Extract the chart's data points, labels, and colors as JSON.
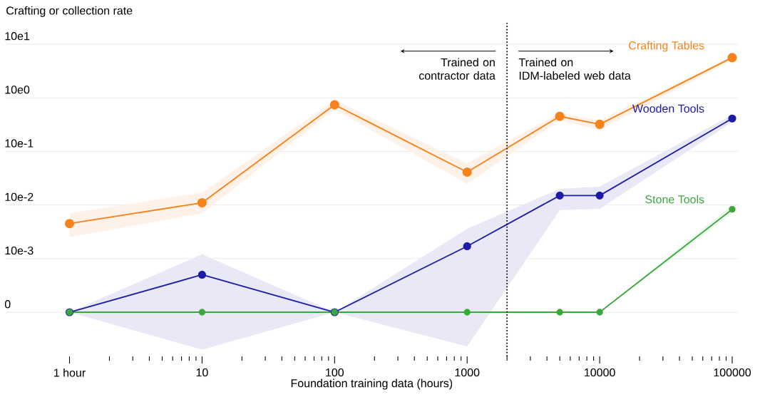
{
  "chart_data": {
    "type": "line",
    "xlabel": "Foundation training data (hours)",
    "ylabel": "Crafting or collection rate",
    "log": "xy",
    "x": [
      1,
      10,
      100,
      1000,
      5000,
      10000,
      100000
    ],
    "xlim": [
      0.33,
      110000
    ],
    "ylim": [
      0.00015,
      250
    ],
    "xticks": [
      {
        "value": 1,
        "label": "1 hour"
      },
      10,
      100,
      1000,
      10000,
      100000
    ],
    "yticks": [
      {
        "value": 0.001,
        "label": "0"
      },
      {
        "value": 0.01,
        "label": "10e-3"
      },
      {
        "value": 0.1,
        "label": "10e-2"
      },
      {
        "value": 1,
        "label": "10e-1"
      },
      {
        "value": 10,
        "label": "10e0"
      },
      {
        "value": 100,
        "label": "10e1"
      }
    ],
    "grid": "y",
    "marker": "circle",
    "series": [
      {
        "name": "Crafting Tables",
        "color": "#f7821b",
        "values": [
          0.045,
          0.11,
          7.4,
          0.41,
          4.5,
          3.2,
          56
        ],
        "lower": [
          0.025,
          0.07,
          6,
          0.25,
          3.8,
          2.5,
          50
        ],
        "upper": [
          0.07,
          0.17,
          9,
          0.6,
          5.2,
          3.8,
          60
        ]
      },
      {
        "name": "Wooden Tools",
        "color": "#1c1ca8",
        "values": [
          0.001,
          0.005,
          0.001,
          0.017,
          0.15,
          0.15,
          4.1
        ],
        "lower": [
          0.001,
          0.0002,
          0.001,
          0.00023,
          0.08,
          0.085,
          3.5
        ],
        "upper": [
          0.001,
          0.012,
          0.001,
          0.036,
          0.2,
          0.22,
          4.8
        ]
      },
      {
        "name": "Stone Tools",
        "color": "#3ca83c",
        "values": [
          0.001,
          0.001,
          0.001,
          0.001,
          0.001,
          0.001,
          0.083
        ],
        "lower": [
          0.001,
          0.001,
          0.001,
          0.001,
          0.001,
          0.001,
          0.07
        ],
        "upper": [
          0.001,
          0.001,
          0.001,
          0.001,
          0.001,
          0.001,
          0.1
        ]
      }
    ],
    "ref_lines": [
      {
        "axis": "x",
        "value": 2000,
        "line_style": "dotted",
        "color": "#000000"
      }
    ],
    "annotations": [
      "Trained on contractor data",
      "Trained on IDM-labeled web data"
    ]
  }
}
